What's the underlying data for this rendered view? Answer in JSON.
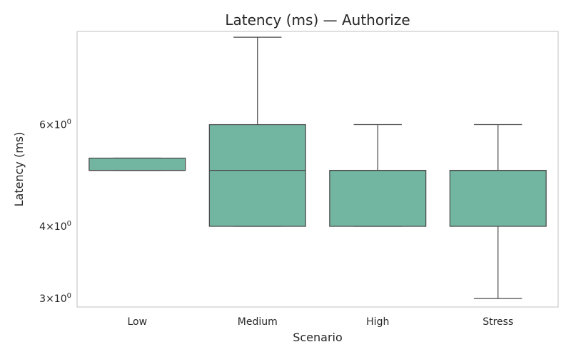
{
  "chart_data": {
    "type": "box",
    "title": "Latency (ms) — Authorize",
    "xlabel": "Scenario",
    "ylabel": "Latency (ms)",
    "yscale": "log",
    "ylim": [
      2.9,
      8.7
    ],
    "grid": false,
    "box_color": "#72b6a1",
    "categories": [
      "Low",
      "Medium",
      "High",
      "Stress"
    ],
    "y_ticks": [
      {
        "value": 3,
        "base": "3",
        "exp": "0"
      },
      {
        "value": 4,
        "base": "4",
        "exp": "0"
      },
      {
        "value": 6,
        "base": "6",
        "exp": "0"
      }
    ],
    "boxes": [
      {
        "category": "Low",
        "whisker_low": 5,
        "q1": 5,
        "median": 5,
        "q3": 5.25,
        "whisker_high": 5.25
      },
      {
        "category": "Medium",
        "whisker_low": 4,
        "q1": 4,
        "median": 5,
        "q3": 6,
        "whisker_high": 8.5
      },
      {
        "category": "High",
        "whisker_low": 4,
        "q1": 4,
        "median": 5,
        "q3": 5,
        "whisker_high": 6
      },
      {
        "category": "Stress",
        "whisker_low": 3,
        "q1": 4,
        "median": 5,
        "q3": 5,
        "whisker_high": 6
      }
    ]
  }
}
